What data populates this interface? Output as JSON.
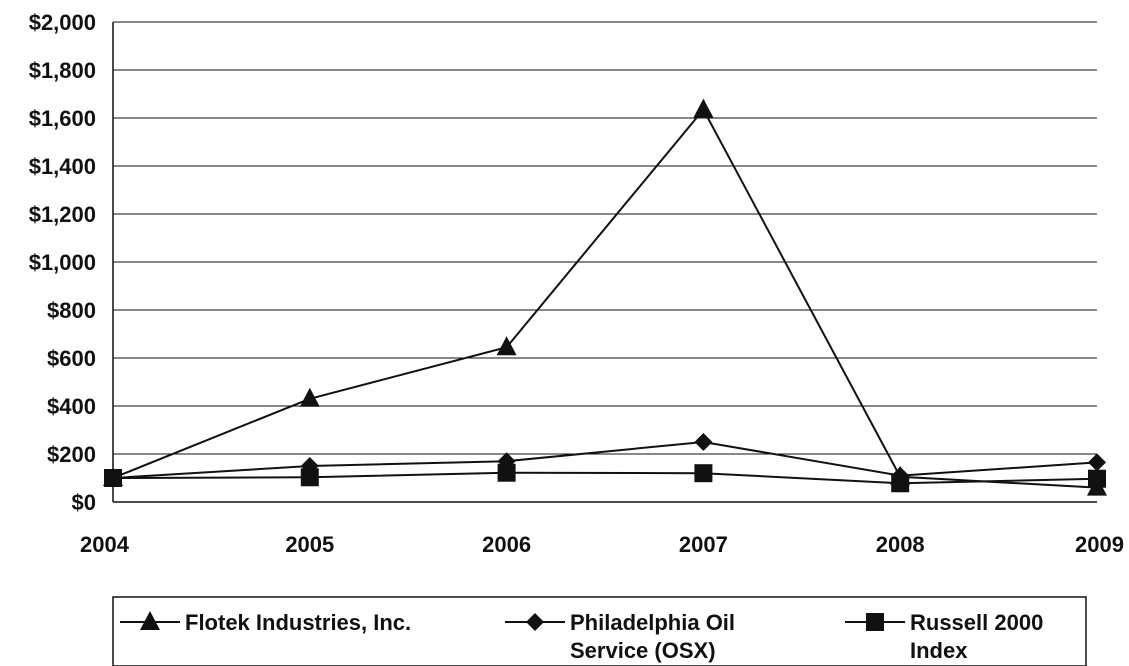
{
  "chart_data": {
    "type": "line",
    "categories": [
      "2004",
      "2005",
      "2006",
      "2007",
      "2008",
      "2009"
    ],
    "y_tick_labels": [
      "$0",
      "$200",
      "$400",
      "$600",
      "$800",
      "$1,000",
      "$1,200",
      "$1,400",
      "$1,600",
      "$1,800",
      "$2,000"
    ],
    "ylim": [
      0,
      2000
    ],
    "grid": true,
    "legend_position": "bottom",
    "series": [
      {
        "name": "Flotek Industries, Inc.",
        "marker": "triangle",
        "color": "#111111",
        "values": [
          100,
          430,
          645,
          1635,
          105,
          60
        ]
      },
      {
        "name": "Philadelphia Oil Service (OSX)",
        "marker": "diamond",
        "color": "#111111",
        "values": [
          100,
          150,
          170,
          250,
          110,
          165
        ]
      },
      {
        "name": "Russell 2000 Index",
        "marker": "square",
        "color": "#111111",
        "values": [
          100,
          103,
          122,
          120,
          78,
          97
        ]
      }
    ]
  }
}
